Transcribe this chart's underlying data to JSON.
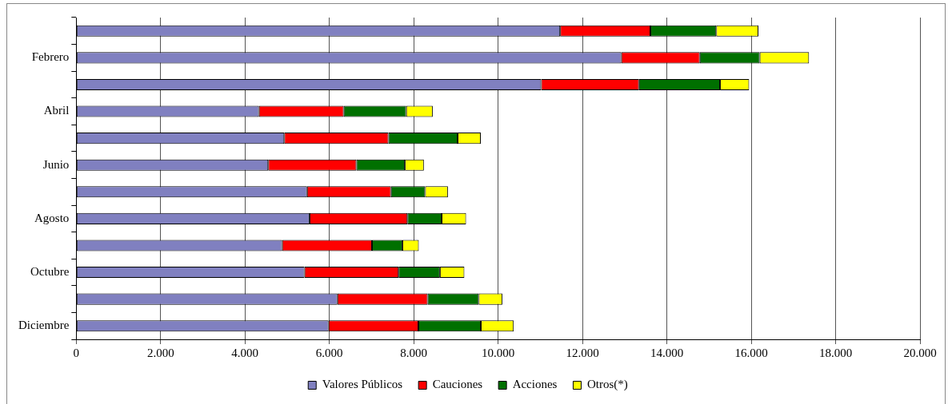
{
  "chart_data": {
    "type": "bar",
    "orientation": "horizontal",
    "stacked": true,
    "categories": [
      null,
      "Febrero",
      null,
      "Abril",
      null,
      "Junio",
      null,
      "Agosto",
      null,
      "Octubre",
      null,
      "Diciembre"
    ],
    "series": [
      {
        "name": "Valores Públicos",
        "color": "#8080c0",
        "values": [
          11470,
          12920,
          11020,
          4330,
          4930,
          4550,
          5470,
          5530,
          4880,
          5410,
          6190,
          5980
        ]
      },
      {
        "name": "Cauciones",
        "color": "#ff0000",
        "values": [
          2140,
          1860,
          2320,
          2010,
          2470,
          2090,
          1990,
          2320,
          2130,
          2230,
          2140,
          2130
        ]
      },
      {
        "name": "Acciones",
        "color": "#007000",
        "values": [
          1560,
          1420,
          1920,
          1480,
          1640,
          1150,
          810,
          810,
          720,
          980,
          1210,
          1480
        ]
      },
      {
        "name": "Otros(*)",
        "color": "#ffff00",
        "values": [
          1000,
          1170,
          690,
          630,
          550,
          450,
          540,
          580,
          390,
          580,
          560,
          780
        ]
      }
    ],
    "xlim": [
      0,
      20000
    ],
    "xticks": [
      {
        "value": 0,
        "label": "0"
      },
      {
        "value": 2000,
        "label": "2.000"
      },
      {
        "value": 4000,
        "label": "4.000"
      },
      {
        "value": 6000,
        "label": "6.000"
      },
      {
        "value": 8000,
        "label": "8.000"
      },
      {
        "value": 10000,
        "label": "10.000"
      },
      {
        "value": 12000,
        "label": "12.000"
      },
      {
        "value": 14000,
        "label": "14.000"
      },
      {
        "value": 16000,
        "label": "16.000"
      },
      {
        "value": 18000,
        "label": "18.000"
      },
      {
        "value": 20000,
        "label": "20.000"
      }
    ],
    "grid": "x",
    "legend": "bottom"
  }
}
